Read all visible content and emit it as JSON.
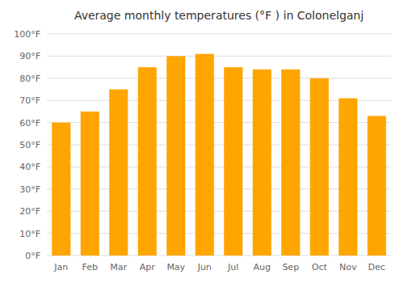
{
  "chart_data": {
    "type": "bar",
    "title": "Average monthly temperatures (°F ) in Colonelganj",
    "categories": [
      "Jan",
      "Feb",
      "Mar",
      "Apr",
      "May",
      "Jun",
      "Jul",
      "Aug",
      "Sep",
      "Oct",
      "Nov",
      "Dec"
    ],
    "values": [
      60,
      65,
      75,
      85,
      90,
      91,
      85,
      84,
      84,
      80,
      71,
      63
    ],
    "color": "#FFA500",
    "ylim": [
      0,
      100
    ],
    "yticks": [
      {
        "value": 0,
        "label": "0°F"
      },
      {
        "value": 10,
        "label": "10°F"
      },
      {
        "value": 20,
        "label": "20°F"
      },
      {
        "value": 30,
        "label": "30°F"
      },
      {
        "value": 40,
        "label": "40°F"
      },
      {
        "value": 50,
        "label": "50°F"
      },
      {
        "value": 60,
        "label": "60°F"
      },
      {
        "value": 70,
        "label": "70°F"
      },
      {
        "value": 80,
        "label": "80°F"
      },
      {
        "value": 90,
        "label": "90°F"
      },
      {
        "value": 100,
        "label": "100°F"
      }
    ],
    "grid": true
  }
}
